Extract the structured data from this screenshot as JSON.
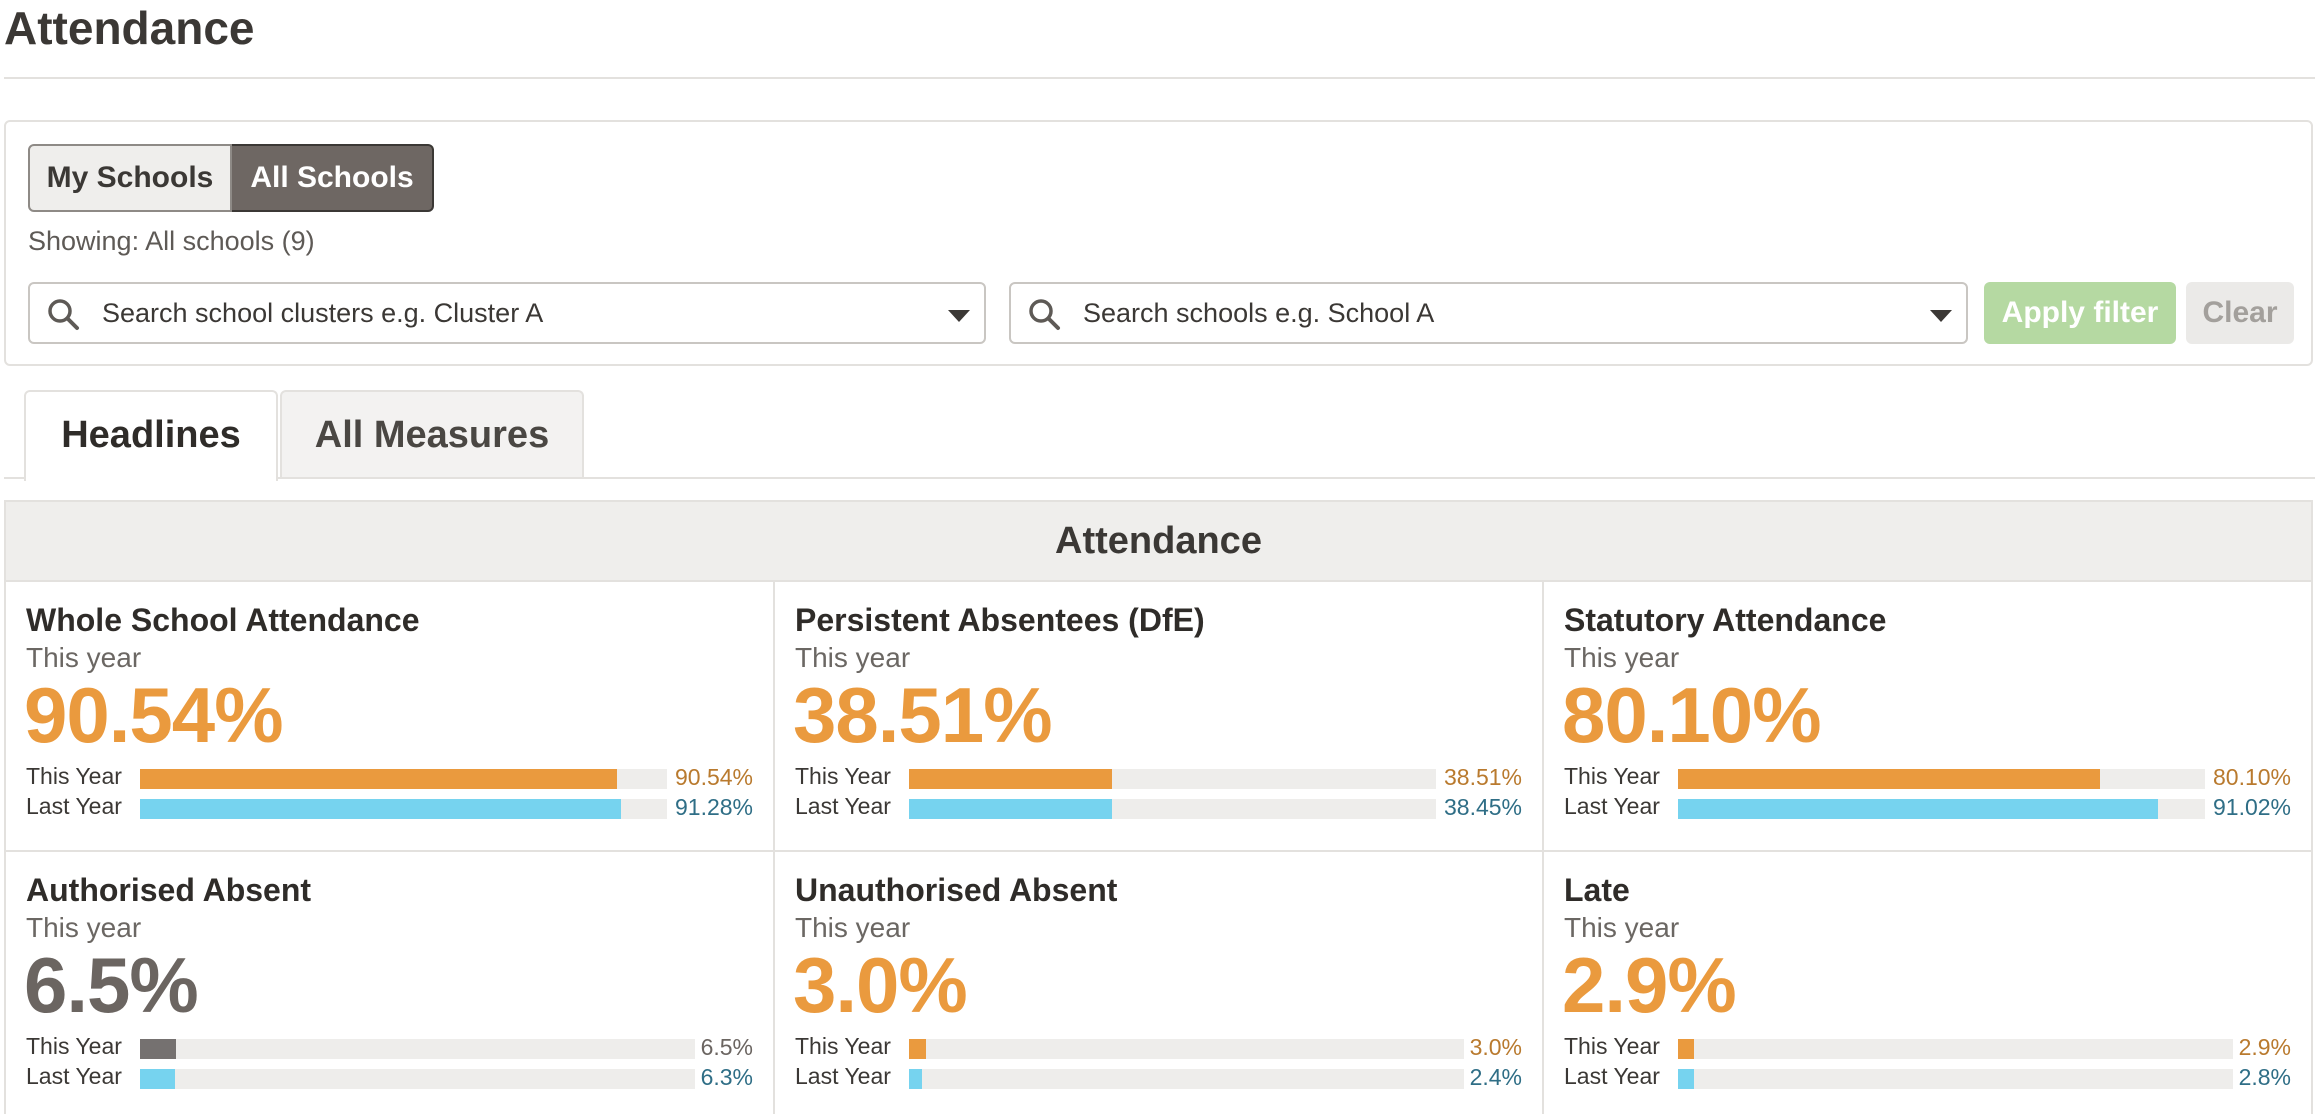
{
  "page": {
    "title": "Attendance"
  },
  "filter": {
    "my_schools_label": "My Schools",
    "all_schools_label": "All Schools",
    "showing_text": "Showing: All schools (9)",
    "clusters_placeholder": "Search school clusters e.g. Cluster A",
    "schools_placeholder": "Search schools e.g. School A",
    "apply_label": "Apply filter",
    "clear_label": "Clear",
    "selected_toggle": "All Schools"
  },
  "tabs": [
    {
      "label": "Headlines",
      "active": true
    },
    {
      "label": "All Measures",
      "active": false
    }
  ],
  "attendance": {
    "header": "Attendance",
    "cards": [
      {
        "title": "Whole School Attendance",
        "sub": "This year",
        "big": "90.54%",
        "big_color": "orange",
        "this_label": "This Year",
        "this_value": "90.54%",
        "this_fraction": 0.9054,
        "this_color": "orange",
        "last_label": "Last Year",
        "last_value": "91.28%",
        "last_fraction": 0.9128
      },
      {
        "title": "Persistent Absentees (DfE)",
        "sub": "This year",
        "big": "38.51%",
        "big_color": "orange",
        "this_label": "This Year",
        "this_value": "38.51%",
        "this_fraction": 0.3851,
        "this_color": "orange",
        "last_label": "Last Year",
        "last_value": "38.45%",
        "last_fraction": 0.3845
      },
      {
        "title": "Statutory Attendance",
        "sub": "This year",
        "big": "80.10%",
        "big_color": "orange",
        "this_label": "This Year",
        "this_value": "80.10%",
        "this_fraction": 0.801,
        "this_color": "orange",
        "last_label": "Last Year",
        "last_value": "91.02%",
        "last_fraction": 0.9102
      },
      {
        "title": "Authorised Absent",
        "sub": "This year",
        "big": "6.5%",
        "big_color": "grey",
        "this_label": "This Year",
        "this_value": "6.5%",
        "this_fraction": 0.065,
        "this_color": "grey",
        "last_label": "Last Year",
        "last_value": "6.3%",
        "last_fraction": 0.063
      },
      {
        "title": "Unauthorised Absent",
        "sub": "This year",
        "big": "3.0%",
        "big_color": "orange",
        "this_label": "This Year",
        "this_value": "3.0%",
        "this_fraction": 0.03,
        "this_color": "orange",
        "last_label": "Last Year",
        "last_value": "2.4%",
        "last_fraction": 0.024
      },
      {
        "title": "Late",
        "sub": "This year",
        "big": "2.9%",
        "big_color": "orange",
        "this_label": "This Year",
        "this_value": "2.9%",
        "this_fraction": 0.029,
        "this_color": "orange",
        "last_label": "Last Year",
        "last_value": "2.8%",
        "last_fraction": 0.028
      }
    ]
  },
  "colors": {
    "accent_orange": "#ea9a3e",
    "last_year_blue": "#76d3ef",
    "neutral_grey": "#757170",
    "apply_green": "#b5d9a2",
    "toggle_active": "#6e6763"
  },
  "icons": {
    "search": "search-icon",
    "dropdown": "chevron-down-icon"
  }
}
